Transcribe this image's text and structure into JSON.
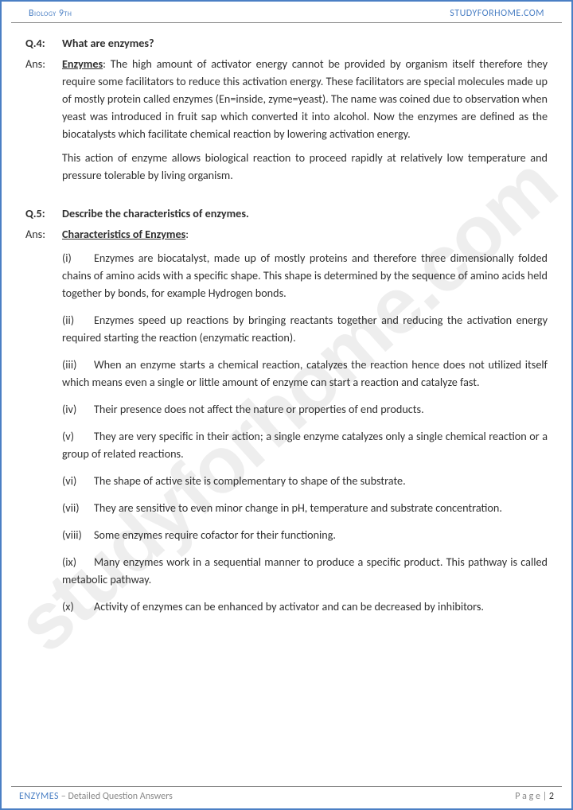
{
  "header": {
    "left": "Biology 9th",
    "right": "STUDYFORHOME.COM"
  },
  "watermark": "studyforhome.com",
  "q4": {
    "label": "Q.4:",
    "question": "What are enzymes?",
    "ansLabel": "Ans:",
    "term": "Enzymes",
    "body1": ": The high amount of activator energy cannot be provided by organism itself therefore they require some facilitators to reduce this activation energy. These facilitators are special molecules made up of mostly protein called enzymes (En=inside, zyme=yeast). The name was coined due to observation when yeast was introduced in fruit sap which converted it into alcohol. Now the enzymes are defined as the biocatalysts which facilitate chemical reaction by lowering activation energy.",
    "body2": "This action of enzyme allows biological reaction to proceed rapidly at relatively low temperature and pressure tolerable by living organism."
  },
  "q5": {
    "label": "Q.5:",
    "question": "Describe the characteristics of enzymes.",
    "ansLabel": "Ans:",
    "term": "Characteristics of Enzymes",
    "colon": ":",
    "items": [
      {
        "n": "(i)",
        "t": "Enzymes are biocatalyst, made up of mostly proteins and therefore three dimensionally folded chains of amino acids with a specific shape. This shape is determined by the sequence of amino acids held together by bonds, for example Hydrogen bonds."
      },
      {
        "n": "(ii)",
        "t": "Enzymes speed up reactions by bringing reactants together and reducing the activation energy required starting the reaction (enzymatic reaction)."
      },
      {
        "n": "(iii)",
        "t": "When an enzyme starts a chemical reaction, catalyzes the reaction hence does not utilized itself which means even a single or little amount of enzyme can start a reaction and catalyze fast."
      },
      {
        "n": "(iv)",
        "t": "Their presence does not affect the nature or properties of end products."
      },
      {
        "n": "(v)",
        "t": "They are very specific in their action; a single enzyme catalyzes only a single chemical reaction or a group of related reactions."
      },
      {
        "n": "(vi)",
        "t": "The shape of active site is complementary to shape of the substrate."
      },
      {
        "n": "(vii)",
        "t": "They are sensitive to even minor change in pH, temperature and substrate concentration."
      },
      {
        "n": "(viii)",
        "t": "Some enzymes require cofactor for their functioning."
      },
      {
        "n": "(ix)",
        "t": "Many enzymes work in a sequential manner to produce a specific product. This pathway is called metabolic pathway."
      },
      {
        "n": "(x)",
        "t": "Activity of enzymes can be enhanced by activator and can be decreased by inhibitors."
      }
    ]
  },
  "footer": {
    "chapter": "ENZYMES",
    "subtitle": " – Detailed Question Answers",
    "pageLabel": "P a g e  | ",
    "pageNum": "2"
  }
}
